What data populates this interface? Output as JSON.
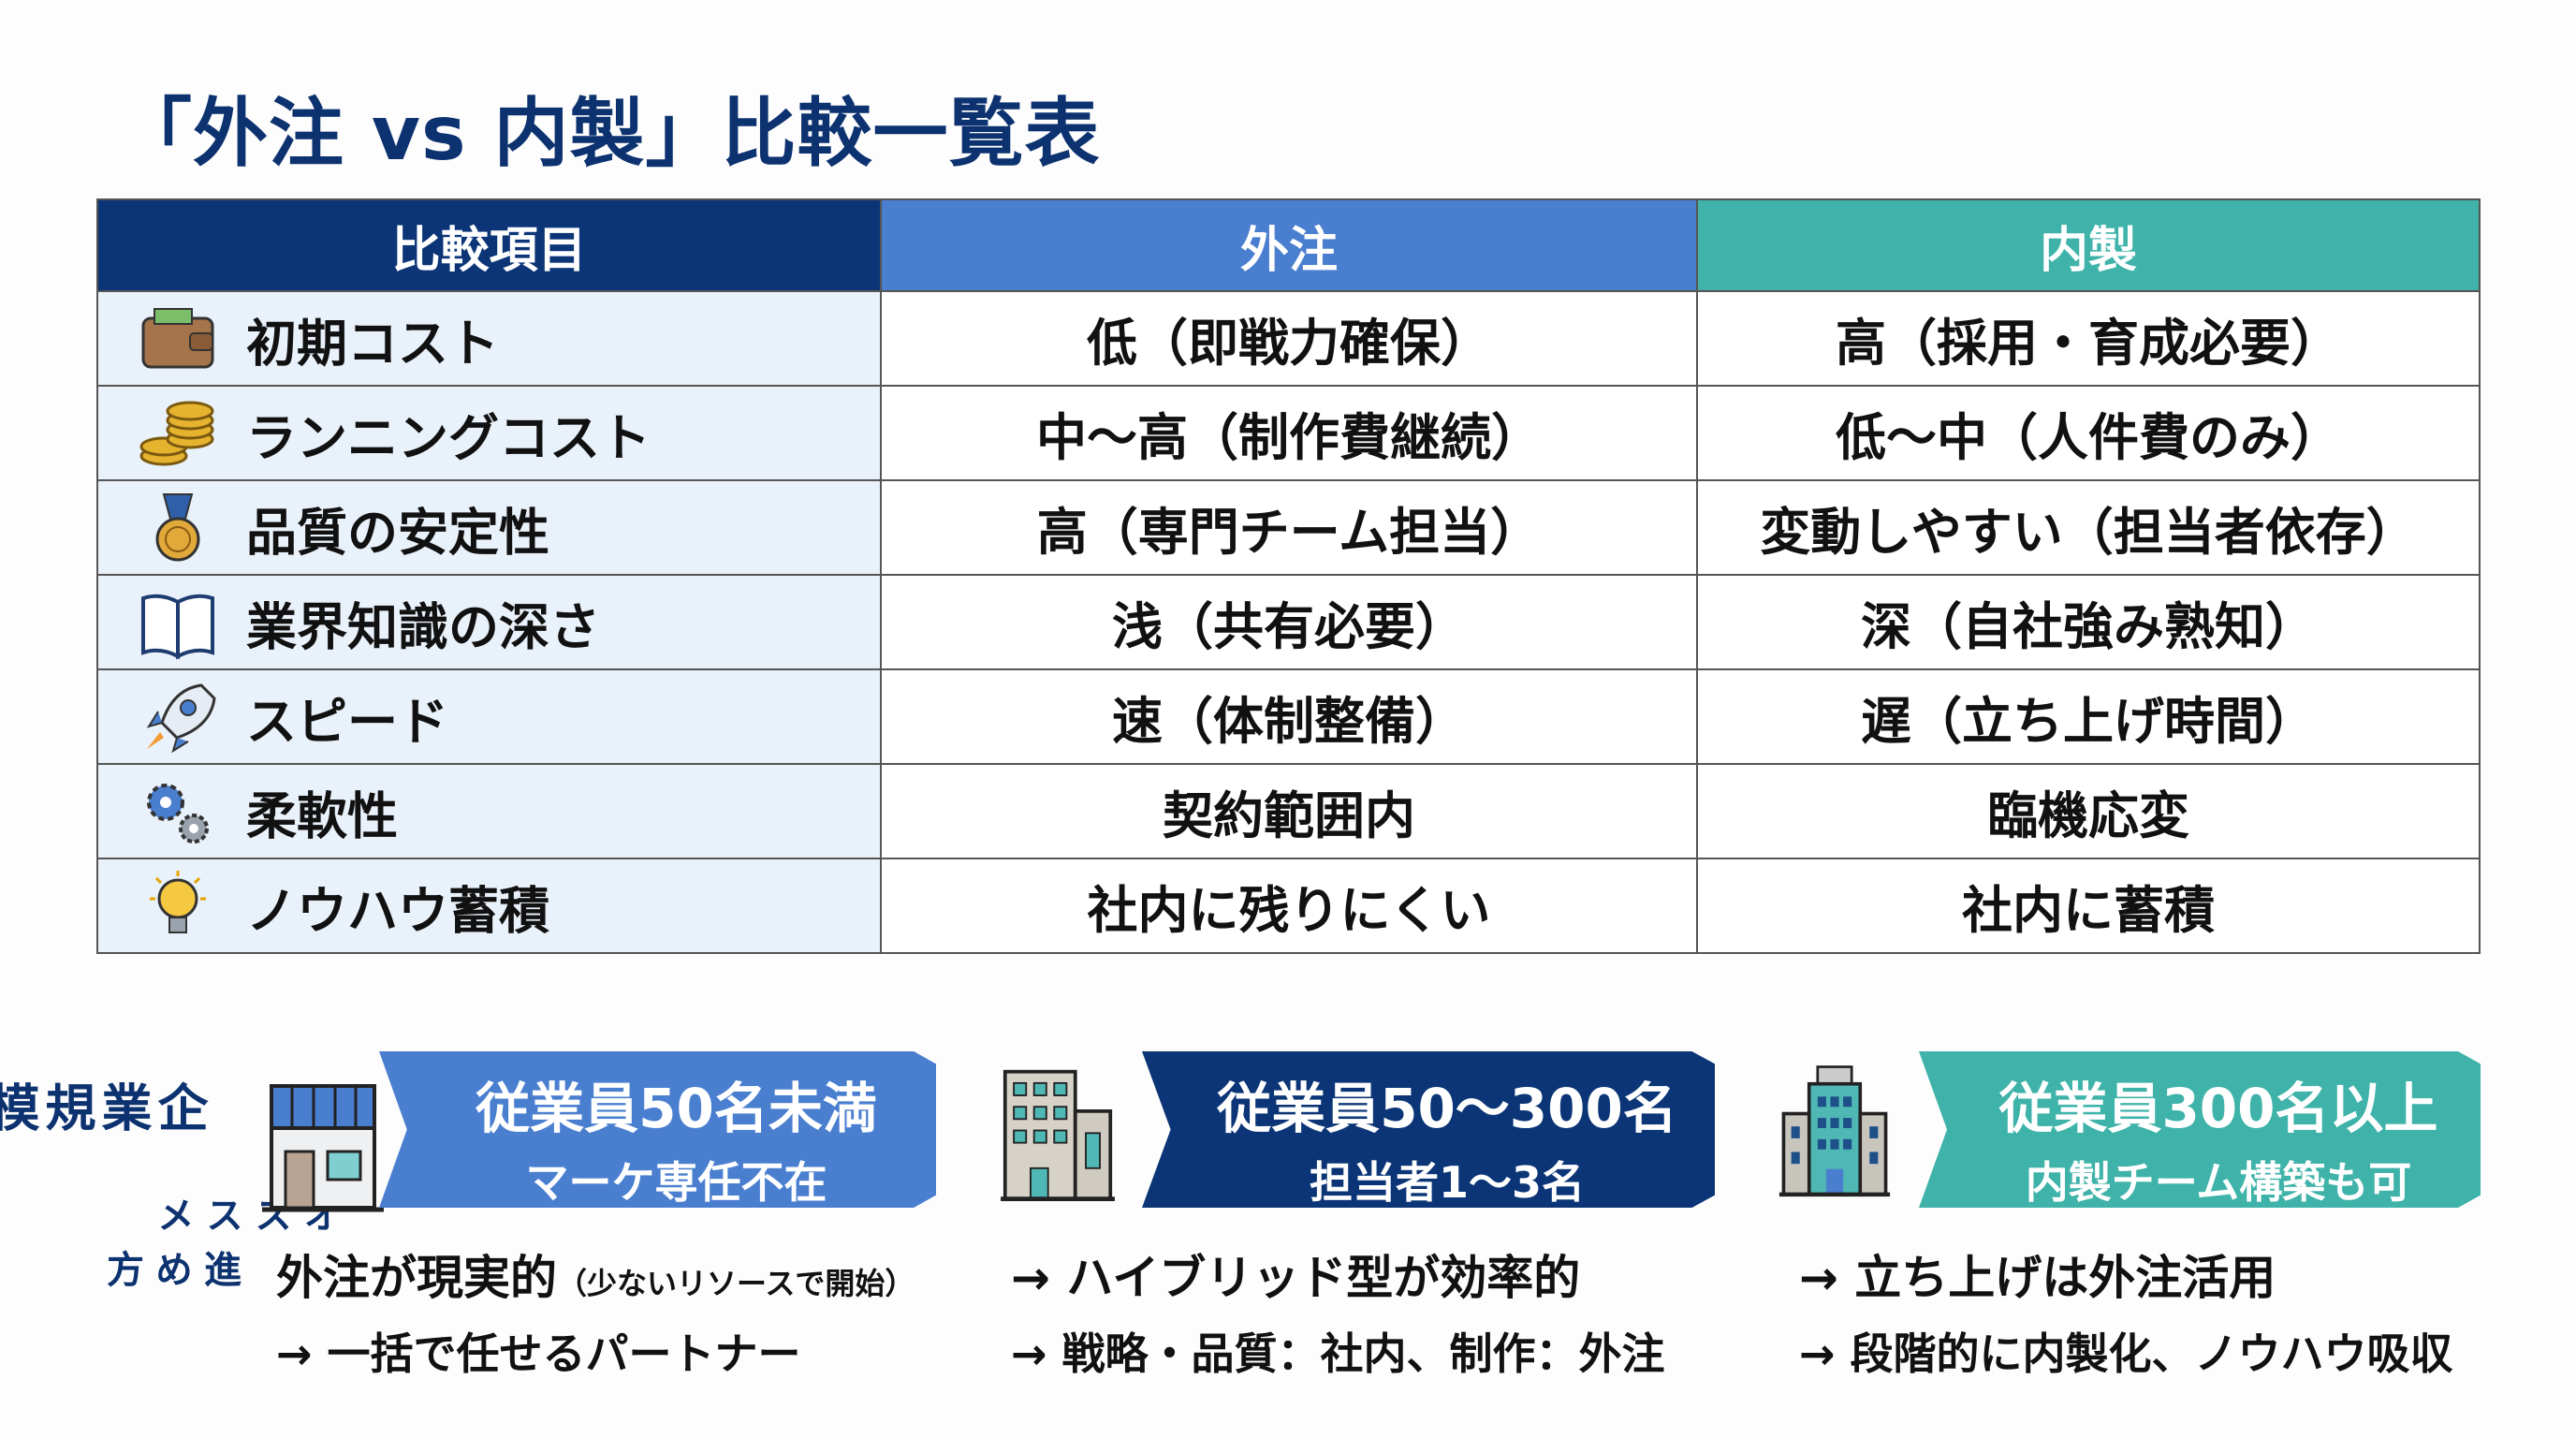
{
  "title": "「外注 vs 内製」比較一覧表",
  "table": {
    "headers": [
      "比較項目",
      "外注",
      "内製"
    ],
    "rows": [
      {
        "icon": "wallet-icon",
        "item": "初期コスト",
        "outsource": "低（即戦力確保）",
        "inhouse": "高（採用・育成必要）"
      },
      {
        "icon": "coins-icon",
        "item": "ランニングコスト",
        "outsource": "中〜高（制作費継続）",
        "inhouse": "低〜中（人件費のみ）"
      },
      {
        "icon": "medal-icon",
        "item": "品質の安定性",
        "outsource": "高（専門チーム担当）",
        "inhouse": "変動しやすい（担当者依存）"
      },
      {
        "icon": "book-icon",
        "item": "業界知識の深さ",
        "outsource": "浅（共有必要）",
        "inhouse": "深（自社強み熟知）"
      },
      {
        "icon": "rocket-icon",
        "item": "スピード",
        "outsource": "速（体制整備）",
        "inhouse": "遅（立ち上げ時間）"
      },
      {
        "icon": "gears-icon",
        "item": "柔軟性",
        "outsource": "契約範囲内",
        "inhouse": "臨機応変"
      },
      {
        "icon": "lightbulb-icon",
        "item": "ノウハウ蓄積",
        "outsource": "社内に残りにくい",
        "inhouse": "社内に蓄積"
      }
    ]
  },
  "side_label": {
    "main": "企業規模別",
    "sub1": "オススメ",
    "sub2": "進め方"
  },
  "segments": [
    {
      "icon": "store-icon",
      "color": "#4a7fd0",
      "line1": "従業員50名未満",
      "line2": "マーケ専任不在",
      "rec1": "外注が現実的",
      "rec1_note": "（少ないリソースで開始）",
      "rec2": "→ 一括で任せるパートナー"
    },
    {
      "icon": "office-building-icon",
      "color": "#0b3576",
      "line1": "従業員50〜300名",
      "line2": "担当者1〜3名",
      "rec1": "→ ハイブリッド型が効率的",
      "rec1_note": "",
      "rec2": "→ 戦略・品質：社内、制作：外注"
    },
    {
      "icon": "skyscraper-icon",
      "color": "#3fb3a9",
      "line1": "従業員300名以上",
      "line2": "内製チーム構築も可",
      "rec1": "→ 立ち上げは外注活用",
      "rec1_note": "",
      "rec2": "→ 段階的に内製化、ノウハウ吸収"
    }
  ]
}
